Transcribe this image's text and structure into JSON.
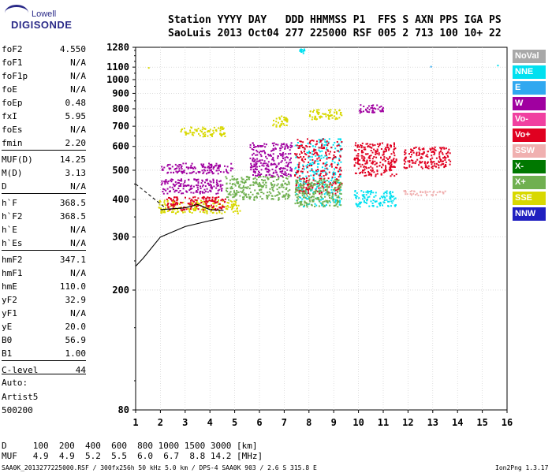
{
  "logo": {
    "top": "Lowell",
    "main": "DIGISONDE"
  },
  "header": {
    "line1": "Station YYYY DAY   DDD HHMMSS P1  FFS S AXN PPS IGA PS",
    "line2": "SaoLuis 2013 Oct04 277 225000 RSF 005 2 713 100 10+ 22"
  },
  "params": [
    {
      "label": "foF2",
      "value": "4.550"
    },
    {
      "label": "foF1",
      "value": "N/A"
    },
    {
      "label": "foF1p",
      "value": "N/A"
    },
    {
      "label": "foE",
      "value": "N/A"
    },
    {
      "label": "foEp",
      "value": "0.48"
    },
    {
      "label": "fxI",
      "value": "5.95"
    },
    {
      "label": "foEs",
      "value": "N/A"
    },
    {
      "label": "fmin",
      "value": "2.20"
    },
    {
      "label": "MUF(D)",
      "value": "14.25"
    },
    {
      "label": "M(D)",
      "value": "3.13"
    },
    {
      "label": "D",
      "value": "N/A"
    },
    {
      "label": "h`F",
      "value": "368.5"
    },
    {
      "label": "h`F2",
      "value": "368.5"
    },
    {
      "label": "h`E",
      "value": "N/A"
    },
    {
      "label": "h`Es",
      "value": "N/A"
    },
    {
      "label": "hmF2",
      "value": "347.1"
    },
    {
      "label": "hmF1",
      "value": "N/A"
    },
    {
      "label": "hmE",
      "value": "110.0"
    },
    {
      "label": "yF2",
      "value": "32.9"
    },
    {
      "label": "yF1",
      "value": "N/A"
    },
    {
      "label": "yE",
      "value": "20.0"
    },
    {
      "label": "B0",
      "value": "56.9"
    },
    {
      "label": "B1",
      "value": "1.00"
    },
    {
      "label": "C-level",
      "value": "44"
    }
  ],
  "auto": {
    "line1": "Auto:",
    "line2": "Artist5",
    "line3": "500200"
  },
  "muf_table": {
    "line1": "D     100  200  400  600  800 1000 1500 3000 [km]",
    "line2": "MUF   4.9  4.9  5.2  5.5  6.0  6.7  8.8 14.2 [MHz]"
  },
  "footer": {
    "left": "SAA0K_2013277225000.RSF / 300fx256h 50 kHz 5.0 km / DPS-4 SAA0K 903 / 2.6 S 315.8 E",
    "right": "Ion2Png 1.3.17"
  },
  "legend": [
    {
      "label": "NoVal",
      "color": "#a8a8a8"
    },
    {
      "label": "NNE",
      "color": "#00e0f0"
    },
    {
      "label": "E",
      "color": "#30a8f0"
    },
    {
      "label": "W",
      "color": "#a000a0"
    },
    {
      "label": "Vo-",
      "color": "#f040a0"
    },
    {
      "label": "Vo+",
      "color": "#e00020"
    },
    {
      "label": "SSW",
      "color": "#f0b0b0"
    },
    {
      "label": "X-",
      "color": "#007800"
    },
    {
      "label": "X+",
      "color": "#70b050"
    },
    {
      "label": "SSE",
      "color": "#d8d800"
    },
    {
      "label": "NNW",
      "color": "#2020c0"
    }
  ],
  "chart_data": {
    "type": "scatter",
    "title": "",
    "xlabel": "",
    "ylabel": "",
    "xlim": [
      1,
      16
    ],
    "ylim": [
      80,
      1280
    ],
    "x_ticks": [
      1,
      2,
      3,
      4,
      5,
      6,
      7,
      8,
      9,
      10,
      11,
      12,
      13,
      14,
      15,
      16
    ],
    "y_ticks": [
      80,
      200,
      300,
      400,
      500,
      600,
      700,
      800,
      900,
      1000,
      1100,
      1280
    ],
    "y_scale": "log",
    "grid": true,
    "trace_clusters": [
      {
        "mode": "W",
        "x": [
          2.0,
          4.9
        ],
        "y": [
          490,
          530
        ]
      },
      {
        "mode": "W",
        "x": [
          2.0,
          4.5
        ],
        "y": [
          420,
          470
        ]
      },
      {
        "mode": "SSE",
        "x": [
          2.8,
          4.6
        ],
        "y": [
          650,
          700
        ]
      },
      {
        "mode": "SSE",
        "x": [
          1.9,
          5.2
        ],
        "y": [
          360,
          400
        ]
      },
      {
        "mode": "Vo+",
        "x": [
          2.2,
          4.6
        ],
        "y": [
          370,
          410
        ]
      },
      {
        "mode": "X+",
        "x": [
          4.6,
          7.2
        ],
        "y": [
          400,
          480
        ]
      },
      {
        "mode": "W",
        "x": [
          5.6,
          7.3
        ],
        "y": [
          480,
          620
        ]
      },
      {
        "mode": "SSE",
        "x": [
          6.5,
          7.1
        ],
        "y": [
          700,
          760
        ]
      },
      {
        "mode": "NNE",
        "x": [
          7.4,
          9.3
        ],
        "y": [
          380,
          640
        ]
      },
      {
        "mode": "Vo+",
        "x": [
          7.4,
          9.3
        ],
        "y": [
          420,
          640
        ]
      },
      {
        "mode": "X+",
        "x": [
          7.4,
          9.3
        ],
        "y": [
          380,
          470
        ]
      },
      {
        "mode": "SSE",
        "x": [
          8.0,
          9.3
        ],
        "y": [
          740,
          800
        ]
      },
      {
        "mode": "NNE",
        "x": [
          7.6,
          7.8
        ],
        "y": [
          1230,
          1270
        ]
      },
      {
        "mode": "Vo+",
        "x": [
          9.8,
          11.5
        ],
        "y": [
          480,
          620
        ]
      },
      {
        "mode": "NNE",
        "x": [
          9.8,
          11.5
        ],
        "y": [
          380,
          430
        ]
      },
      {
        "mode": "W",
        "x": [
          10.0,
          11.0
        ],
        "y": [
          780,
          830
        ]
      },
      {
        "mode": "Vo+",
        "x": [
          11.8,
          13.7
        ],
        "y": [
          510,
          600
        ]
      },
      {
        "mode": "SSW",
        "x": [
          11.8,
          13.5
        ],
        "y": [
          415,
          430
        ]
      }
    ],
    "isolated_points": [
      {
        "mode": "NNE",
        "x": 15.6,
        "y": 1120
      },
      {
        "mode": "E",
        "x": 12.9,
        "y": 1110
      },
      {
        "mode": "SSE",
        "x": 1.5,
        "y": 1100
      }
    ],
    "profile": {
      "x": [
        1.0,
        1.3,
        2.0,
        3.0,
        4.0,
        4.55
      ],
      "y": [
        240,
        255,
        300,
        325,
        340,
        347
      ]
    },
    "trace_fit": {
      "x": [
        2.0,
        3.0,
        3.5,
        4.0,
        4.55
      ],
      "y": [
        370,
        375,
        385,
        370,
        368
      ]
    },
    "dashed_fit": {
      "x": [
        1.0,
        2.2
      ],
      "y": [
        450,
        375
      ]
    }
  }
}
